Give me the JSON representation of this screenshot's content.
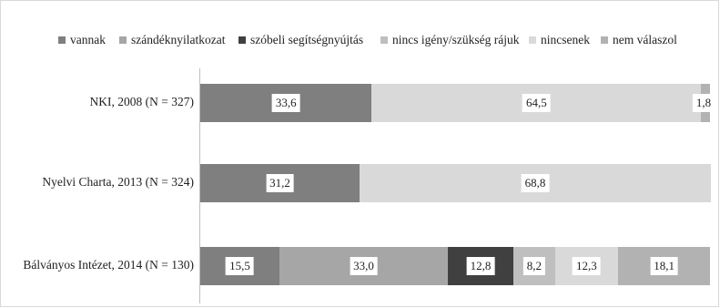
{
  "chart_data": {
    "type": "bar",
    "orientation": "horizontal",
    "stacked": "percent",
    "categories": [
      "NKI, 2008 (N = 327)",
      "Nyelvi Charta, 2013 (N = 324)",
      "Bálványos Intézet, 2014 (N = 130)"
    ],
    "series": [
      {
        "name": "vannak",
        "color": "#7f7f7f",
        "values": [
          33.6,
          31.2,
          15.5
        ],
        "labels": [
          "33,6",
          "31,2",
          "15,5"
        ]
      },
      {
        "name": "szándéknyilatkozat",
        "color": "#a6a6a6",
        "values": [
          null,
          null,
          33.0
        ],
        "labels": [
          "",
          "",
          "33,0"
        ]
      },
      {
        "name": "szóbeli segítségnyújtás",
        "color": "#404040",
        "values": [
          null,
          null,
          12.8
        ],
        "labels": [
          "",
          "",
          "12,8"
        ]
      },
      {
        "name": "nincs igény/szükség rájuk",
        "color": "#bfbfbf",
        "values": [
          null,
          null,
          8.2
        ],
        "labels": [
          "",
          "",
          "8,2"
        ]
      },
      {
        "name": "nincsenek",
        "color": "#d9d9d9",
        "values": [
          64.5,
          68.8,
          12.3
        ],
        "labels": [
          "64,5",
          "68,8",
          "12,3"
        ]
      },
      {
        "name": "nem válaszol",
        "color": "#b2b2b2",
        "values": [
          1.8,
          null,
          18.1
        ],
        "labels": [
          "1,8",
          "",
          "18,1"
        ]
      }
    ],
    "xlim": [
      0,
      100
    ],
    "legend_position": "top",
    "grid": false
  }
}
